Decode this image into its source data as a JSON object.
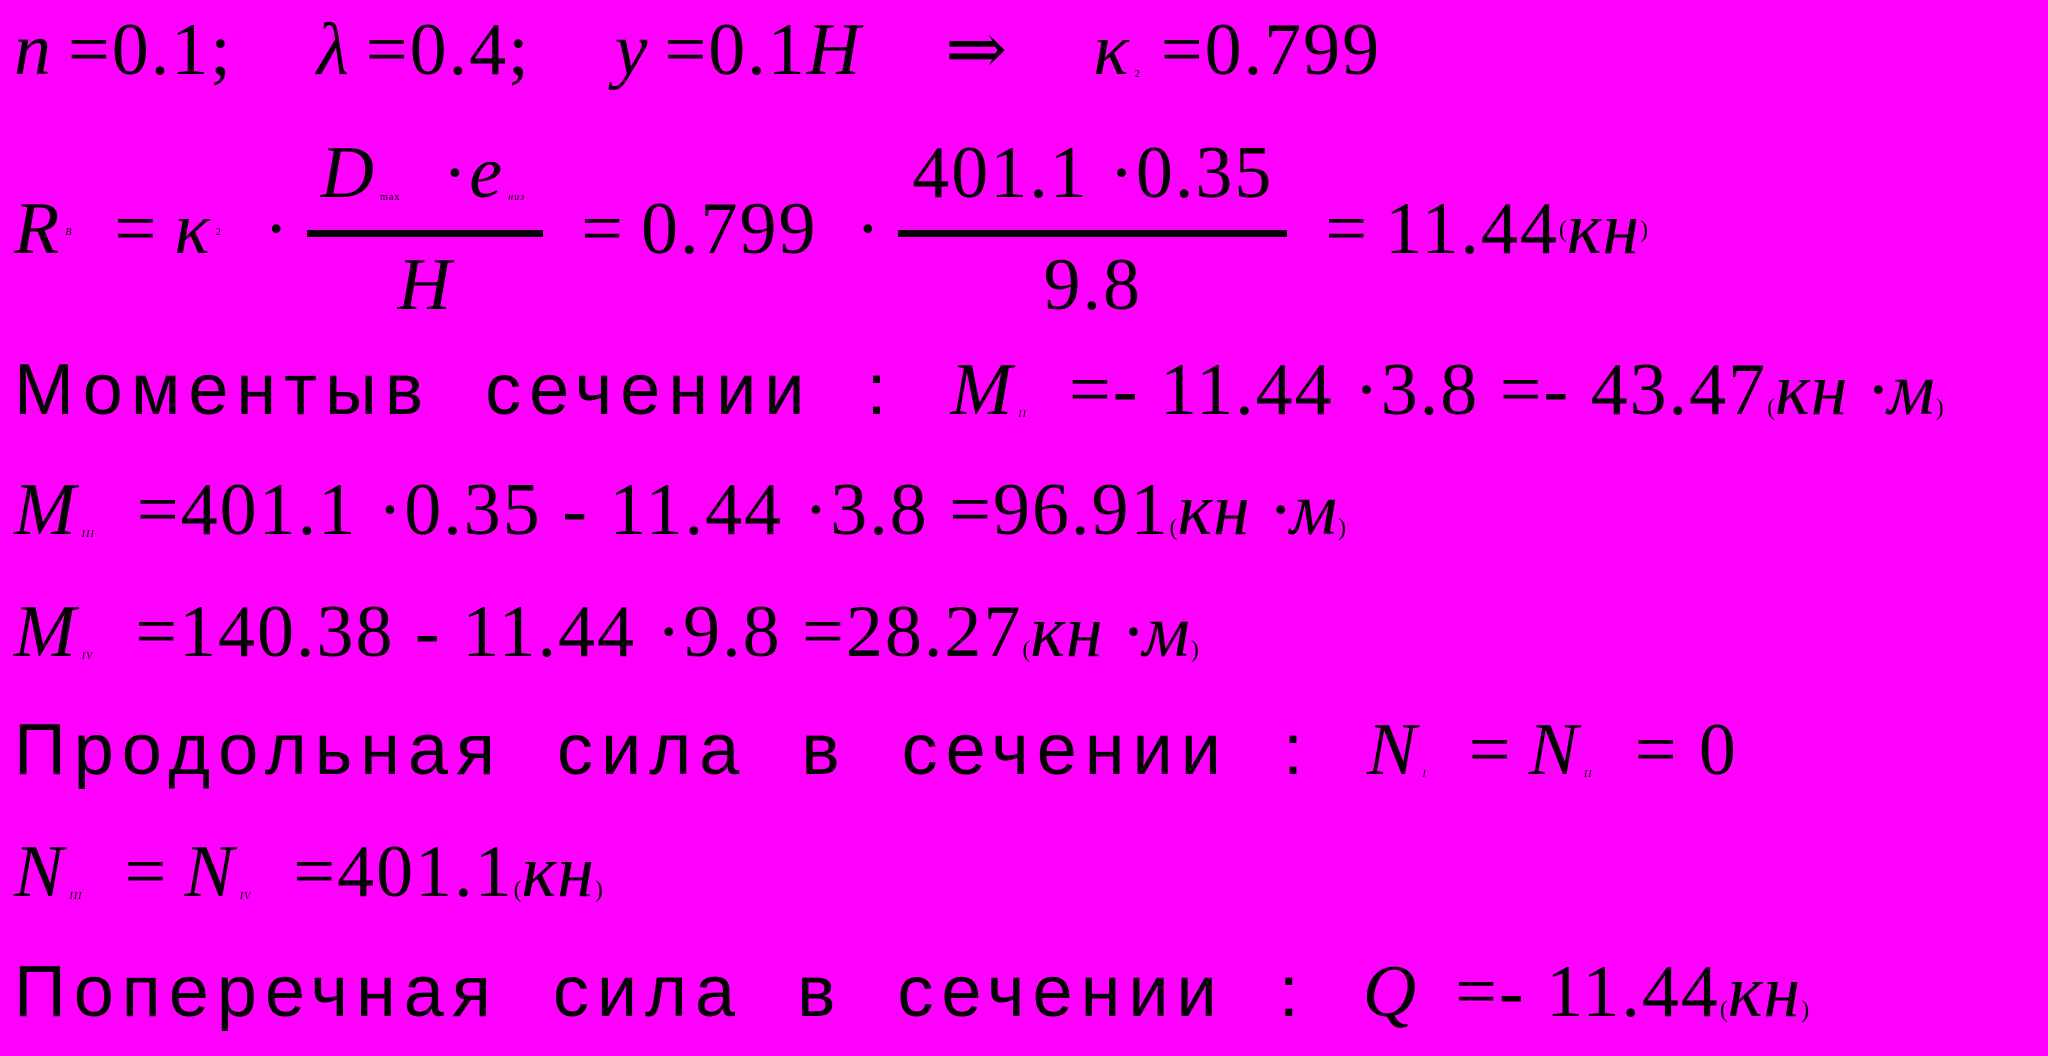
{
  "colors": {
    "background": "#ff00ff",
    "text": "#000000"
  },
  "line1": {
    "n": "n",
    "n_val": "=0.1;",
    "lambda": "λ",
    "lambda_val": "=0.4;",
    "y": "y",
    "y_val": "=0.1",
    "H": "H",
    "arrow": "⇒",
    "kappa": "κ",
    "kappa_sub": "2",
    "kappa_val": "=0.799"
  },
  "line2": {
    "R": "R",
    "R_sub": "B",
    "eq1": "=",
    "kappa": "κ",
    "kappa_sub": "2",
    "dot1": "·",
    "frac1": {
      "D": "D",
      "D_sub": "max",
      "dot": "·",
      "e": "e",
      "e_sub": "низ",
      "den": "H"
    },
    "eq2": "=",
    "factor": "0.799",
    "dot2": "·",
    "frac2": {
      "num": "401.1 ·0.35",
      "den": "9.8"
    },
    "eq3": "=",
    "result": "11.44",
    "open": "(",
    "unit": "кн",
    "close": ")"
  },
  "line3": {
    "label": "Моментыв сечении :",
    "M": "M",
    "M_sub": "II",
    "expr": "=- 11.44 ·3.8 =- 43.47",
    "open": "(",
    "unit": "кн ·м",
    "close": ")"
  },
  "line4": {
    "M": "M",
    "M_sub": "III",
    "expr": "=401.1 ·0.35 - 11.44 ·3.8 =96.91",
    "open": "(",
    "unit": "кн ·м",
    "close": ")"
  },
  "line5": {
    "M": "M",
    "M_sub": "IV",
    "expr": "=140.38 - 11.44 ·9.8 =28.27",
    "open": "(",
    "unit": "кн ·м",
    "close": ")"
  },
  "line6": {
    "label": "Продольная сила в сечении :",
    "N1": "N",
    "N1_sub": "I",
    "eq1": "=",
    "N2": "N",
    "N2_sub": "II",
    "eq2": "= 0"
  },
  "line7": {
    "N1": "N",
    "N1_sub": "III",
    "eq1": "=",
    "N2": "N",
    "N2_sub": "IV",
    "eq2": "=401.1",
    "open": "(",
    "unit": "кн",
    "close": ")"
  },
  "line8": {
    "label": "Поперечная сила в сечении :",
    "Q": "Q",
    "expr": "=- 11.44",
    "open": "(",
    "unit": "кн",
    "close": ")"
  }
}
